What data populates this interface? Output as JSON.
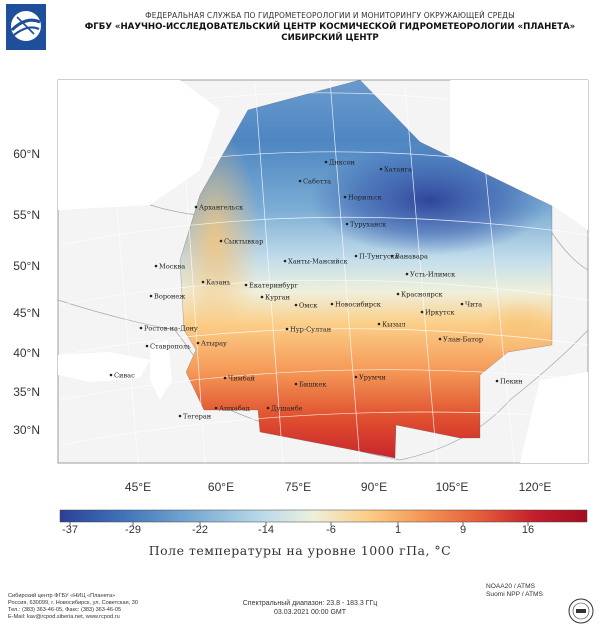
{
  "header": {
    "line1": "ФЕДЕРАЛЬНАЯ СЛУЖБА ПО ГИДРОМЕТЕОРОЛОГИИ И МОНИТОРИНГУ ОКРУЖАЮЩЕЙ СРЕДЫ",
    "line2": "ФГБУ «НАУЧНО-ИССЛЕДОВАТЕЛЬСКИЙ ЦЕНТР КОСМИЧЕСКОЙ ГИДРОМЕТЕОРОЛОГИИ «ПЛАНЕТА»",
    "line3": "СИБИРСКИЙ ЦЕНТР"
  },
  "map": {
    "lat_labels": [
      "60°N",
      "55°N",
      "50°N",
      "45°N",
      "40°N",
      "35°N",
      "30°N"
    ],
    "lon_labels": [
      "45°E",
      "60°E",
      "75°E",
      "90°E",
      "105°E",
      "120°E"
    ],
    "cities": [
      {
        "name": "Диксон",
        "lon": 80.4,
        "lat": 73.5
      },
      {
        "name": "Хатанга",
        "lon": 102.5,
        "lat": 72.0
      },
      {
        "name": "Сабетта",
        "lon": 72.0,
        "lat": 71.3
      },
      {
        "name": "Норильск",
        "lon": 88.2,
        "lat": 69.3
      },
      {
        "name": "Архангельск",
        "lon": 40.5,
        "lat": 64.5
      },
      {
        "name": "Туруханск",
        "lon": 87.9,
        "lat": 65.8
      },
      {
        "name": "Сыктывкар",
        "lon": 50.8,
        "lat": 61.7
      },
      {
        "name": "П-Тунгуска",
        "lon": 93.0,
        "lat": 61.6
      },
      {
        "name": "Ванавара",
        "lon": 102.3,
        "lat": 60.3
      },
      {
        "name": "Ханты-Мансийск",
        "lon": 69.0,
        "lat": 61.0
      },
      {
        "name": "Москва",
        "lon": 37.6,
        "lat": 55.8
      },
      {
        "name": "Усть-Илимск",
        "lon": 102.7,
        "lat": 58.0
      },
      {
        "name": "Казань",
        "lon": 49.1,
        "lat": 55.8
      },
      {
        "name": "Екатеринбург",
        "lon": 60.6,
        "lat": 56.8
      },
      {
        "name": "Красноярск",
        "lon": 92.9,
        "lat": 56.0
      },
      {
        "name": "Воронеж",
        "lon": 39.2,
        "lat": 51.7
      },
      {
        "name": "Курган",
        "lon": 65.3,
        "lat": 55.4
      },
      {
        "name": "Омск",
        "lon": 73.4,
        "lat": 55.0
      },
      {
        "name": "Новосибирск",
        "lon": 82.9,
        "lat": 55.0
      },
      {
        "name": "Чита",
        "lon": 113.5,
        "lat": 52.0
      },
      {
        "name": "Иркутск",
        "lon": 104.3,
        "lat": 52.3
      },
      {
        "name": "Ростов-на-Дону",
        "lon": 39.7,
        "lat": 47.2
      },
      {
        "name": "Нур-Султан",
        "lon": 71.4,
        "lat": 51.2
      },
      {
        "name": "Кызыл",
        "lon": 94.4,
        "lat": 51.7
      },
      {
        "name": "Ставрополь",
        "lon": 42.0,
        "lat": 45.0
      },
      {
        "name": "Атырау",
        "lon": 51.9,
        "lat": 47.1
      },
      {
        "name": "Улан-Батор",
        "lon": 106.9,
        "lat": 47.9
      },
      {
        "name": "Сивас",
        "lon": 37.0,
        "lat": 39.7
      },
      {
        "name": "Чимбай",
        "lon": 59.8,
        "lat": 42.9
      },
      {
        "name": "Бишкек",
        "lon": 74.6,
        "lat": 42.9
      },
      {
        "name": "Урумчи",
        "lon": 87.6,
        "lat": 43.8
      },
      {
        "name": "Пекин",
        "lon": 116.4,
        "lat": 39.9
      },
      {
        "name": "Ашхабад",
        "lon": 58.4,
        "lat": 37.9
      },
      {
        "name": "Душанбе",
        "lon": 68.8,
        "lat": 38.6
      },
      {
        "name": "Тегеран",
        "lon": 51.4,
        "lat": 35.7
      }
    ]
  },
  "colorbar": {
    "tick_labels": [
      "-37",
      "-29",
      "-22",
      "-14",
      "-6",
      "1",
      "9",
      "16"
    ],
    "colors": [
      "#2c3f98",
      "#3f73b8",
      "#78a9d2",
      "#b8d8ea",
      "#eef0dc",
      "#fbd08a",
      "#f59a58",
      "#e45b3a",
      "#c41e2c",
      "#a30e22"
    ],
    "caption": "Поле температуры на уровне 1000 гПа, °C"
  },
  "footer": {
    "left": [
      "Сибирский центр ФГБУ «НИЦ «Планета»",
      "Россия, 630099, г. Новосибирск, ул. Советская, 30",
      "Тел.: (383) 363-46-05, Факс: (383) 363-46-05",
      "E-Mail: kav@rcpod.siberia.net, www.rcpod.ru"
    ],
    "center": [
      "Спектральный диапазон: 23.8 - 183.3 ГГц",
      "03.03.2021 00:00 GMT"
    ],
    "right": [
      "NOAA20 / ATMS",
      "Suomi NPP / ATMS"
    ]
  }
}
